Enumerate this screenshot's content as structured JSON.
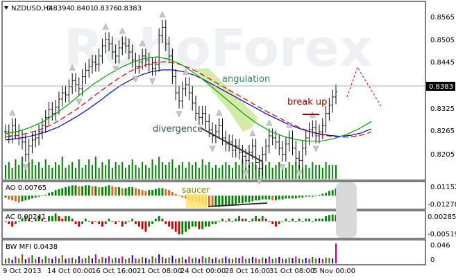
{
  "header": {
    "symbol": "NZDUSD,H4",
    "open": "0.8394",
    "high": "0.8401",
    "low": "0.8376",
    "close": "0.8383"
  },
  "watermark": {
    "text": "RoboForex"
  },
  "annotations": {
    "angulation": "angulation",
    "break_up": "break up",
    "divergence": "divergence",
    "saucer": "saucer"
  },
  "panels": {
    "ao": {
      "label": "AO 0.00765",
      "ticks": [
        "0.01152",
        "-0.01278"
      ]
    },
    "ac": {
      "label": "AC 0.00241",
      "ticks": [
        "0.002853",
        "-0.00519"
      ]
    },
    "mfi": {
      "label": "BW MFI 0.0438",
      "ticks": [
        "0.046",
        "0"
      ]
    }
  },
  "colors": {
    "up_histogram": "#008000",
    "down_histogram": "#c00000",
    "ao_down": "#d2691e",
    "alligator_jaw": "#0000cc",
    "alligator_teeth": "#cc0000",
    "alligator_lips": "#00a000",
    "angulation_fill": "#c6e48b",
    "price_marker": "#000000"
  },
  "chart_data": {
    "type": "candlestick",
    "instrument": "NZDUSD",
    "timeframe": "H4",
    "price_axis": {
      "ticks": [
        "0.8565",
        "0.8505",
        "0.8445",
        "0.8383",
        "0.8325",
        "0.8265",
        "0.8205"
      ],
      "current_price": "0.8383",
      "range": [
        0.817,
        0.859
      ]
    },
    "time_axis": {
      "ticks": [
        "9 Oct 2013",
        "14 Oct 00:00",
        "16 Oct 16:00",
        "21 Oct 08:00",
        "24 Oct 00:00",
        "28 Oct 16:00",
        "31 Oct 08:00",
        "5 Nov 00:00"
      ]
    },
    "close": [
      0.8285,
      0.8275,
      0.83,
      0.8285,
      0.827,
      0.826,
      0.823,
      0.825,
      0.8265,
      0.827,
      0.8285,
      0.83,
      0.832,
      0.834,
      0.833,
      0.8345,
      0.8365,
      0.838,
      0.8375,
      0.8395,
      0.841,
      0.84,
      0.839,
      0.842,
      0.8435,
      0.8445,
      0.8455,
      0.845,
      0.847,
      0.8495,
      0.851,
      0.85,
      0.848,
      0.847,
      0.849,
      0.85,
      0.8495,
      0.848,
      0.846,
      0.8445,
      0.8455,
      0.847,
      0.846,
      0.845,
      0.844,
      0.845,
      0.852,
      0.854,
      0.85,
      0.847,
      0.842,
      0.838,
      0.836,
      0.839,
      0.84,
      0.838,
      0.8355,
      0.833,
      0.832,
      0.833,
      0.831,
      0.829,
      0.8275,
      0.8285,
      0.83,
      0.827,
      0.8255,
      0.826,
      0.824,
      0.825,
      0.8235,
      0.8225,
      0.8215,
      0.8235,
      0.825,
      0.821,
      0.8195,
      0.823,
      0.825,
      0.8275,
      0.827,
      0.826,
      0.8245,
      0.823,
      0.8255,
      0.827,
      0.8245,
      0.822,
      0.8215,
      0.8245,
      0.827,
      0.829,
      0.8295,
      0.8275,
      0.8285,
      0.83,
      0.833,
      0.835,
      0.837,
      0.8383
    ],
    "alligator": {
      "jaw": [
        0.8265,
        0.8268,
        0.8272,
        0.8278,
        0.8286,
        0.8296,
        0.831,
        0.8325,
        0.8342,
        0.836,
        0.838,
        0.8398,
        0.8412,
        0.8424,
        0.8432,
        0.8436,
        0.8436,
        0.8432,
        0.8424,
        0.8412,
        0.8398,
        0.8384,
        0.837,
        0.8356,
        0.8342,
        0.8328,
        0.8316,
        0.8304,
        0.8294,
        0.8286,
        0.828,
        0.8276,
        0.8274,
        0.8276,
        0.8282,
        0.8292
      ],
      "teeth": [
        0.8272,
        0.8276,
        0.8282,
        0.829,
        0.8302,
        0.8318,
        0.8336,
        0.8356,
        0.8378,
        0.8398,
        0.8418,
        0.8434,
        0.8446,
        0.8454,
        0.8456,
        0.8452,
        0.8442,
        0.8428,
        0.8412,
        0.8396,
        0.838,
        0.8364,
        0.8348,
        0.8332,
        0.8318,
        0.8304,
        0.8292,
        0.8282,
        0.8276,
        0.8272,
        0.8272,
        0.8276,
        0.8284
      ],
      "lips": [
        0.828,
        0.8286,
        0.8296,
        0.831,
        0.833,
        0.8352,
        0.8378,
        0.8402,
        0.8422,
        0.844,
        0.8454,
        0.8464,
        0.8468,
        0.8462,
        0.8448,
        0.8428,
        0.8404,
        0.8378,
        0.8352,
        0.8326,
        0.8304,
        0.8286,
        0.8274,
        0.8266,
        0.8262,
        0.8262,
        0.8268,
        0.8278,
        0.8292,
        0.831
      ]
    },
    "ao": [
      -0.002,
      -0.004,
      -0.005,
      -0.006,
      -0.007,
      -0.006,
      -0.005,
      -0.004,
      -0.003,
      -0.002,
      -0.001,
      0.0,
      0.001,
      0.003,
      0.004,
      0.006,
      0.007,
      0.008,
      0.009,
      0.01,
      0.011,
      0.011,
      0.01,
      0.01,
      0.011,
      0.011,
      0.01,
      0.01,
      0.009,
      0.009,
      0.01,
      0.011,
      0.01,
      0.009,
      0.009,
      0.008,
      0.008,
      0.009,
      0.009,
      0.008,
      0.007,
      0.006,
      0.005,
      0.006,
      0.006,
      0.007,
      0.008,
      0.008,
      0.007,
      0.006,
      0.004,
      0.002,
      0.0,
      -0.002,
      -0.003,
      -0.005,
      -0.006,
      -0.007,
      -0.008,
      -0.009,
      -0.01,
      -0.011,
      -0.012,
      -0.012,
      -0.012,
      -0.011,
      -0.011,
      -0.01,
      -0.01,
      -0.009,
      -0.008,
      -0.008,
      -0.007,
      -0.007,
      -0.006,
      -0.005,
      -0.005,
      -0.004,
      -0.004,
      -0.004,
      -0.005,
      -0.005,
      -0.004,
      -0.004,
      -0.003,
      -0.003,
      -0.003,
      -0.003,
      -0.002,
      -0.002,
      -0.001,
      -0.001,
      -0.001,
      0.0,
      0.001,
      0.002,
      0.003,
      0.005,
      0.006,
      0.0077
    ],
    "ac": [
      0.0,
      -0.001,
      -0.002,
      -0.001,
      0.0,
      0.001,
      0.002,
      0.001,
      0.0,
      0.001,
      0.002,
      0.001,
      0.0,
      0.002,
      0.002,
      0.003,
      0.002,
      0.001,
      0.002,
      0.002,
      0.001,
      -0.001,
      -0.002,
      -0.001,
      0.001,
      0.0,
      -0.001,
      0.0,
      -0.001,
      -0.002,
      -0.001,
      0.001,
      0.0,
      -0.001,
      0.0,
      -0.002,
      -0.001,
      0.0,
      0.001,
      -0.001,
      -0.002,
      -0.003,
      -0.004,
      -0.002,
      -0.001,
      0.001,
      0.002,
      0.001,
      -0.001,
      -0.002,
      -0.003,
      -0.004,
      -0.005,
      -0.005,
      -0.004,
      -0.003,
      -0.002,
      -0.002,
      -0.003,
      -0.003,
      -0.002,
      -0.002,
      -0.001,
      -0.001,
      0.0,
      0.001,
      0.0,
      0.001,
      0.0,
      0.001,
      0.002,
      0.001,
      0.001,
      0.0,
      0.001,
      0.002,
      0.001,
      0.002,
      0.001,
      0.0,
      -0.001,
      -0.002,
      -0.001,
      0.0,
      0.001,
      0.0,
      0.001,
      0.0,
      0.001,
      0.0,
      0.001,
      0.001,
      0.0,
      0.001,
      0.001,
      0.001,
      0.002,
      0.0024,
      0.0026,
      0.0024
    ],
    "mfi": [
      0.01,
      0.012,
      0.008,
      0.015,
      0.011,
      0.02,
      0.009,
      0.013,
      0.018,
      0.01,
      0.014,
      0.009,
      0.016,
      0.012,
      0.01,
      0.015,
      0.011,
      0.018,
      0.01,
      0.012,
      0.013,
      0.009,
      0.016,
      0.01,
      0.012,
      0.017,
      0.011,
      0.02,
      0.009,
      0.014,
      0.012,
      0.016,
      0.01,
      0.013,
      0.011,
      0.015,
      0.009,
      0.012,
      0.018,
      0.011,
      0.01,
      0.014,
      0.012,
      0.009,
      0.016,
      0.012,
      0.02,
      0.014,
      0.011,
      0.013,
      0.017,
      0.01,
      0.012,
      0.014,
      0.009,
      0.015,
      0.011,
      0.013,
      0.01,
      0.016,
      0.012,
      0.014,
      0.01,
      0.013,
      0.009,
      0.012,
      0.015,
      0.011,
      0.01,
      0.013,
      0.012,
      0.016,
      0.01,
      0.011,
      0.014,
      0.012,
      0.009,
      0.013,
      0.011,
      0.015,
      0.01,
      0.012,
      0.014,
      0.011,
      0.01,
      0.013,
      0.012,
      0.015,
      0.011,
      0.009,
      0.012,
      0.01,
      0.014,
      0.011,
      0.012,
      0.01,
      0.013,
      0.012,
      0.011,
      0.0438
    ],
    "volume": [
      0.5,
      0.6,
      0.4,
      0.7,
      0.5,
      0.8,
      0.4,
      0.6,
      0.7,
      0.5,
      0.6,
      0.4,
      0.7,
      0.5,
      0.4,
      0.6,
      0.5,
      0.8,
      0.4,
      0.5,
      0.6,
      0.4,
      0.7,
      0.4,
      0.5,
      0.7,
      0.5,
      0.8,
      0.4,
      0.6,
      0.5,
      0.7,
      0.4,
      0.6,
      0.5,
      0.6,
      0.4,
      0.5,
      0.7,
      0.5,
      0.4,
      0.6,
      0.5,
      0.4,
      0.7,
      0.5,
      0.8,
      0.6,
      0.5,
      0.6,
      0.7,
      0.4,
      0.5,
      0.6,
      0.4,
      0.6,
      0.5,
      0.6,
      0.4,
      0.7,
      0.5,
      0.6,
      0.4,
      0.5,
      0.4,
      0.5,
      0.6,
      0.5,
      0.4,
      0.6,
      0.5,
      0.7,
      0.4,
      0.5,
      0.6,
      0.5,
      0.4,
      0.6,
      0.5,
      0.6,
      0.4,
      0.5,
      0.6,
      0.5,
      0.4,
      0.6,
      0.5,
      0.6,
      0.5,
      0.4,
      0.5,
      0.4,
      0.6,
      0.5,
      0.5,
      0.4,
      0.6,
      0.5,
      0.5,
      0.5
    ]
  }
}
